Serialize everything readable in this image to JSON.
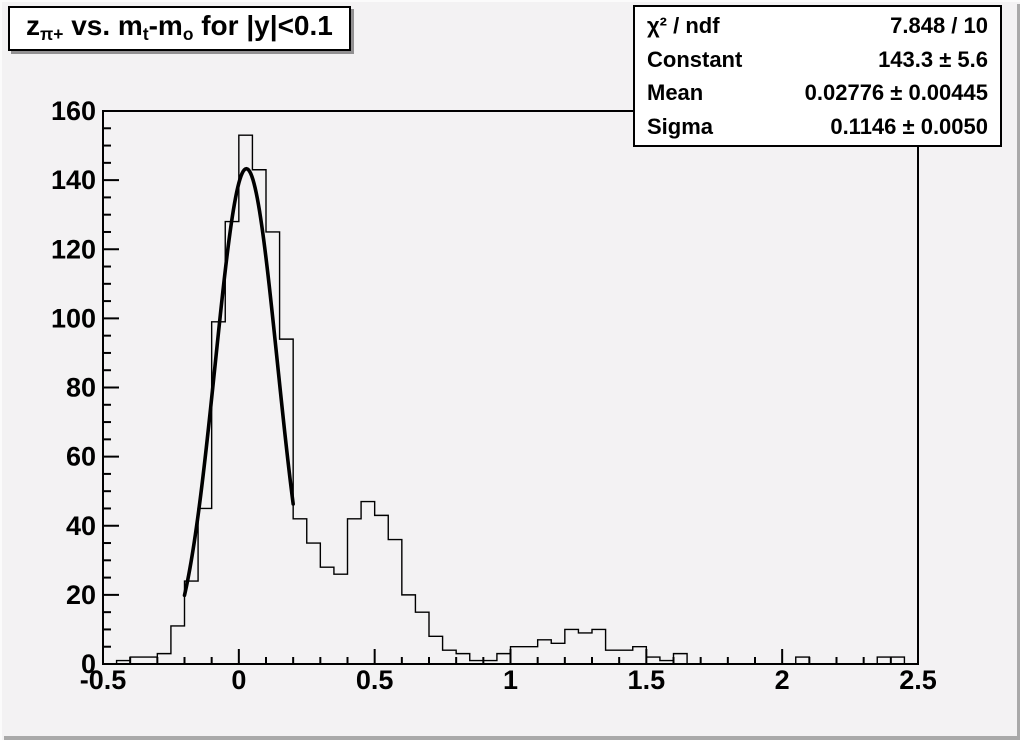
{
  "canvas": {
    "background": "#f3f2f3",
    "box_fill": "#ffffff",
    "line_color": "#000000",
    "bevel_color": "#a9a9a9"
  },
  "title": {
    "full_text": "z_{pi+} vs. m_{t}-m_{o} for |y|<0.1",
    "parts": {
      "z": "z",
      "z_sub": "π+",
      "mid1": " vs. m",
      "mid1_sub": "t",
      "mid2": "-m",
      "mid2_sub": "o",
      "tail": " for |y|<0.1"
    }
  },
  "stats_box": {
    "rows": [
      {
        "label": "χ² / ndf",
        "value": "7.848 / 10"
      },
      {
        "label": "Constant",
        "value": "143.3 ± 5.6"
      },
      {
        "label": "Mean",
        "value": "0.02776 ± 0.00445"
      },
      {
        "label": "Sigma",
        "value": "0.1146 ± 0.0050"
      }
    ]
  },
  "chart_data": {
    "type": "bar",
    "subtype": "histogram-step",
    "title": "z_{pi+} vs. m_t-m_o for |y|<0.1",
    "xlabel": "",
    "ylabel": "",
    "xlim": [
      -0.5,
      2.5
    ],
    "ylim": [
      0,
      160
    ],
    "grid": false,
    "legend": false,
    "bins": {
      "start": -0.5,
      "width": 0.05,
      "counts": [
        0,
        1,
        2,
        2,
        3,
        11,
        24,
        45,
        99,
        128,
        153,
        143,
        125,
        94,
        42,
        35,
        28,
        26,
        42,
        47,
        43,
        36,
        20,
        15,
        8,
        4,
        3,
        1,
        1,
        3,
        5,
        5,
        7,
        6,
        10,
        9,
        10,
        4,
        4,
        5,
        2,
        1,
        3,
        0,
        0,
        0,
        0,
        0,
        0,
        0,
        0,
        2,
        0,
        0,
        0,
        0,
        0,
        2,
        2,
        0
      ]
    },
    "fit": {
      "type": "gaussian",
      "constant": 143.3,
      "mean": 0.02776,
      "sigma": 0.1146,
      "chi2": 7.848,
      "ndf": 10,
      "draw_range": [
        -0.2,
        0.2
      ]
    },
    "x_ticks": {
      "major": [
        -0.5,
        0,
        0.5,
        1,
        1.5,
        2,
        2.5
      ],
      "labels": [
        "-0.5",
        "0",
        "0.5",
        "1",
        "1.5",
        "2",
        "2.5"
      ],
      "minor_step": 0.1
    },
    "y_ticks": {
      "major": [
        0,
        20,
        40,
        60,
        80,
        100,
        120,
        140,
        160
      ],
      "labels": [
        "0",
        "20",
        "40",
        "60",
        "80",
        "100",
        "120",
        "140",
        "160"
      ],
      "minor_step": 5
    }
  }
}
